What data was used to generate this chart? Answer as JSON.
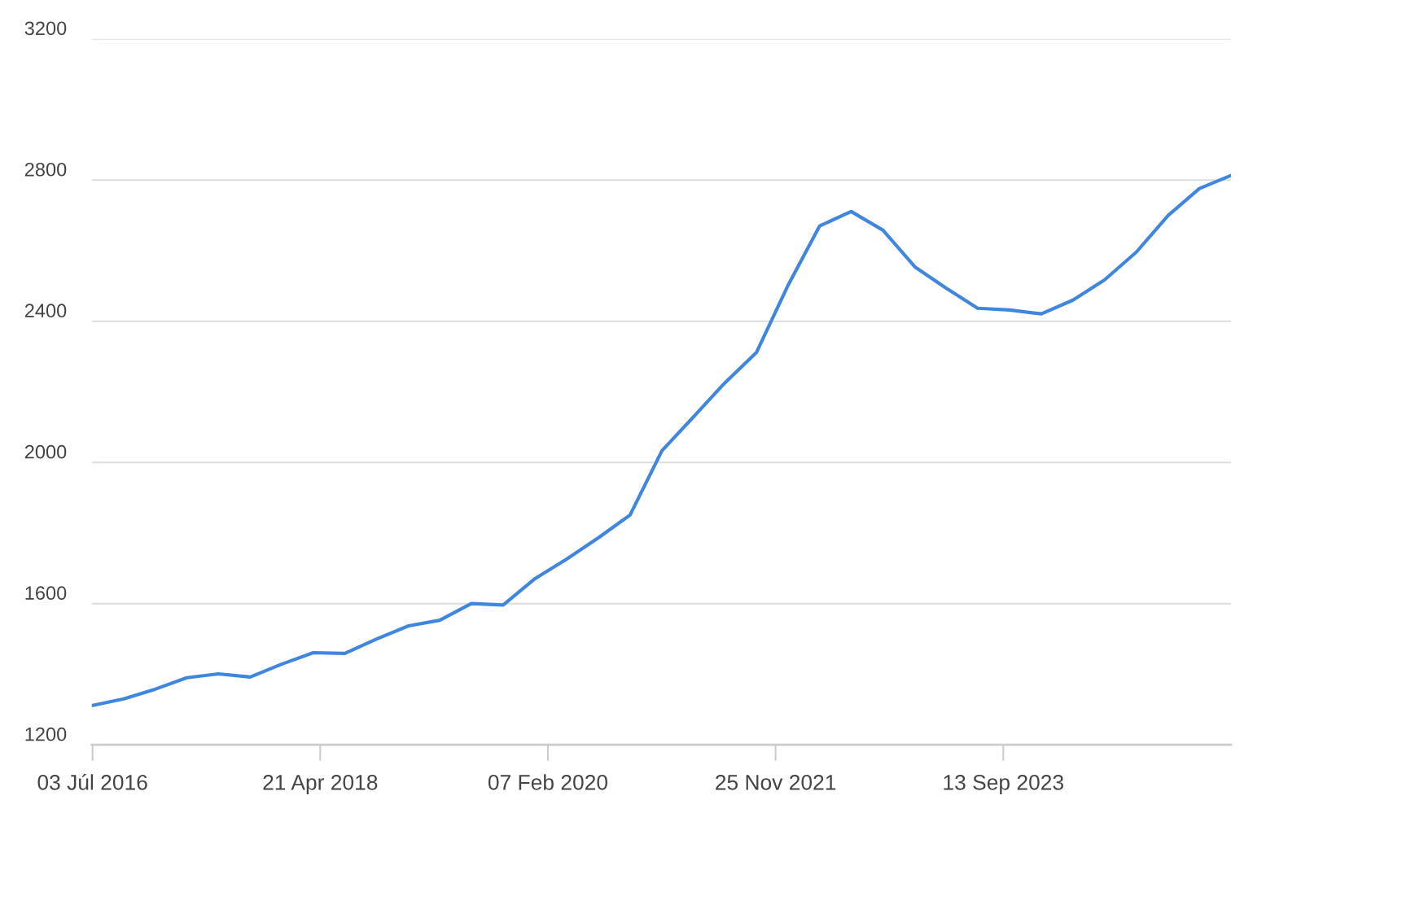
{
  "chart_data": {
    "type": "line",
    "x": [
      "2016-07-01",
      "2016-10-01",
      "2017-01-01",
      "2017-04-01",
      "2017-07-01",
      "2017-10-01",
      "2018-01-01",
      "2018-04-01",
      "2018-07-01",
      "2018-10-01",
      "2019-01-01",
      "2019-04-01",
      "2019-07-01",
      "2019-10-01",
      "2020-01-01",
      "2020-04-01",
      "2020-07-01",
      "2020-10-01",
      "2021-01-01",
      "2021-04-01",
      "2021-07-01",
      "2021-10-01",
      "2022-01-01",
      "2022-04-01",
      "2022-07-01",
      "2022-10-01",
      "2023-01-01",
      "2023-04-01",
      "2023-07-01",
      "2023-10-01",
      "2024-01-01",
      "2024-04-01",
      "2024-07-01",
      "2024-10-01",
      "2025-01-01",
      "2025-04-01",
      "2025-07-01"
    ],
    "series": [
      {
        "color": "#3f86e0",
        "values": [
          1311,
          1330,
          1358,
          1390,
          1401,
          1392,
          1429,
          1461,
          1459,
          1500,
          1537,
          1553,
          1600,
          1596,
          1671,
          1726,
          1786,
          1851,
          2033,
          2128,
          2225,
          2312,
          2504,
          2670,
          2711,
          2658,
          2554,
          2494,
          2437,
          2432,
          2421,
          2460,
          2517,
          2596,
          2700,
          2776,
          2813
        ]
      }
    ],
    "xlim": [
      "2016-07-01",
      "2025-07-01"
    ],
    "xticks": [
      {
        "value": "2016-07-03",
        "label": "03 Júl 2016"
      },
      {
        "value": "2018-04-21",
        "label": "21 Apr 2018"
      },
      {
        "value": "2020-02-07",
        "label": "07 Feb 2020"
      },
      {
        "value": "2021-11-25",
        "label": "25 Nov 2021"
      },
      {
        "value": "2023-09-13",
        "label": "13 Sep 2023"
      }
    ],
    "ylim": [
      1200,
      3200
    ],
    "yticks": [
      1200,
      1600,
      2000,
      2400,
      2800,
      3200
    ],
    "grid": "y",
    "legend": false,
    "marker": "none",
    "line_style": "solid"
  }
}
